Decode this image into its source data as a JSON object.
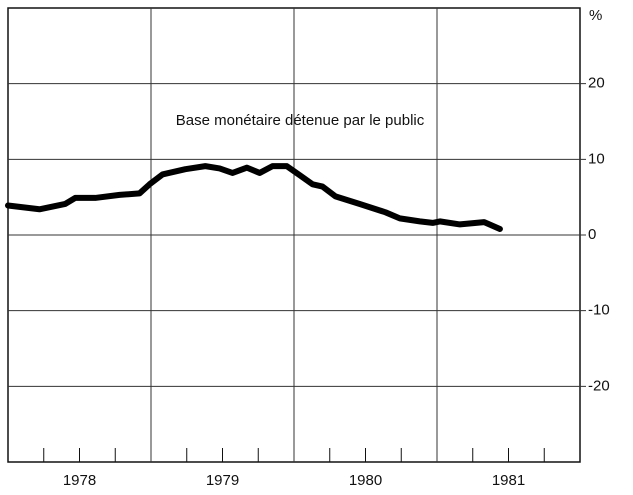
{
  "chart_data": {
    "type": "line",
    "annotation": "Base monétaire détenue par le public",
    "y_unit": "%",
    "series": [
      {
        "name": "Base monétaire détenue par le public",
        "color": "#000000",
        "x": [
          1978.0,
          1978.22,
          1978.4,
          1978.47,
          1978.61,
          1978.78,
          1978.92,
          1978.99,
          1979.08,
          1979.24,
          1979.38,
          1979.48,
          1979.57,
          1979.67,
          1979.76,
          1979.85,
          1979.95,
          1980.04,
          1980.13,
          1980.2,
          1980.29,
          1980.46,
          1980.64,
          1980.74,
          1980.88,
          1980.97,
          1981.02,
          1981.16,
          1981.33,
          1981.44
        ],
        "values": [
          3.9,
          3.4,
          4.1,
          4.9,
          4.9,
          5.3,
          5.5,
          6.7,
          8.0,
          8.7,
          9.1,
          8.8,
          8.2,
          8.9,
          8.2,
          9.1,
          9.1,
          7.9,
          6.7,
          6.4,
          5.1,
          4.1,
          3.0,
          2.2,
          1.8,
          1.6,
          1.8,
          1.4,
          1.7,
          0.8
        ]
      }
    ],
    "xlim": [
      1978,
      1982
    ],
    "xticks": [
      {
        "value": 1978.5,
        "label": "1978"
      },
      {
        "value": 1979.5,
        "label": "1979"
      },
      {
        "value": 1980.5,
        "label": "1980"
      },
      {
        "value": 1981.5,
        "label": "1981"
      }
    ],
    "xgrid": [
      1979,
      1980,
      1981
    ],
    "xminor": [
      1978.25,
      1978.5,
      1978.75,
      1979.25,
      1979.5,
      1979.75,
      1980.25,
      1980.5,
      1980.75,
      1981.25,
      1981.5,
      1981.75
    ],
    "ylim": [
      -30,
      30
    ],
    "yticks": [
      20,
      10,
      0,
      -10,
      -20
    ],
    "grid": true
  }
}
